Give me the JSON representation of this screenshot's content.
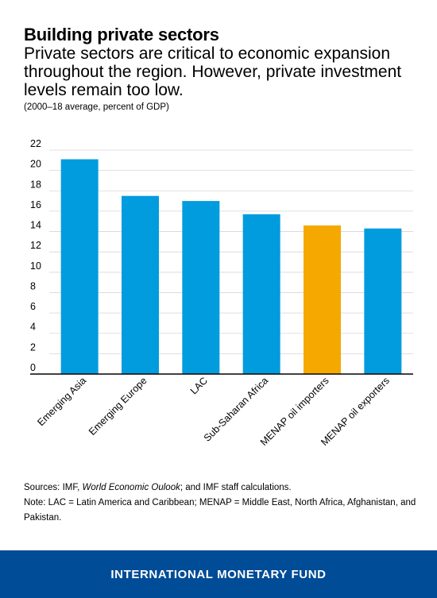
{
  "title": "Building private sectors",
  "subtitle": "Private sectors are critical to economic expansion throughout the region. However, private investment levels remain too low.",
  "units": "(2000–18 average, percent of GDP)",
  "sources": {
    "prefix": "Sources: IMF, ",
    "italic": "World Economic Oulook",
    "suffix": "; and IMF staff calculations."
  },
  "note": "Note: LAC = Latin America and Caribbean; MENAP = Middle East, North Africa, Afghanistan, and Pakistan.",
  "footer": "INTERNATIONAL MONETARY FUND",
  "colors": {
    "default_bar": "#009cde",
    "highlight_bar": "#f5a800",
    "footer_bg": "#004c97"
  },
  "chart_data": {
    "type": "bar",
    "categories": [
      "Emerging Asia",
      "Emerging Europe",
      "LAC",
      "Sub-Saharan Africa",
      "MENAP oil importers",
      "MENAP oil exporters"
    ],
    "values": [
      21.1,
      17.5,
      17.0,
      15.7,
      14.6,
      14.3
    ],
    "highlight": [
      false,
      false,
      false,
      false,
      true,
      false
    ],
    "ylim": [
      0,
      22
    ],
    "yticks": [
      0,
      2,
      4,
      6,
      8,
      10,
      12,
      14,
      16,
      18,
      20,
      22
    ],
    "grid": true,
    "xlabel": "",
    "ylabel": ""
  }
}
